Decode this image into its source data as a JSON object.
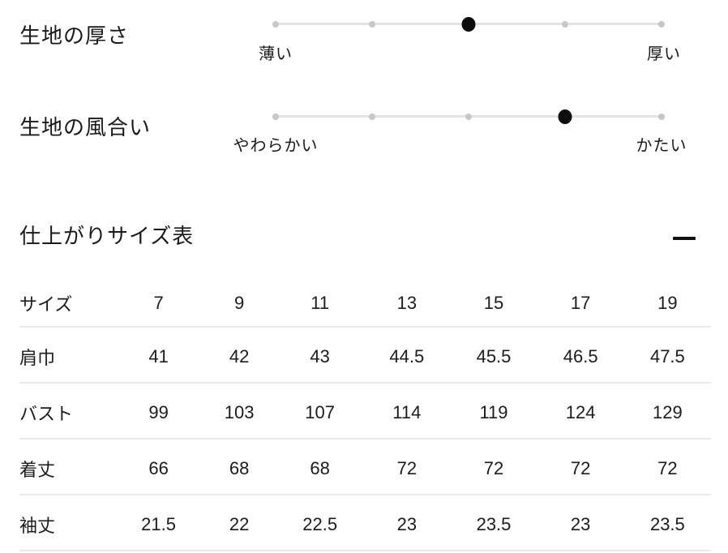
{
  "scales": {
    "items": [
      {
        "label": "生地の厚さ",
        "left_label": "薄い",
        "right_label": "厚い",
        "steps": 5,
        "selected": 3
      },
      {
        "label": "生地の風合い",
        "left_label": "やわらかい",
        "right_label": "かたい",
        "steps": 5,
        "selected": 4
      }
    ]
  },
  "size_section": {
    "title": "仕上がりサイズ表",
    "collapse_icon": "minus",
    "table": {
      "header": [
        "サイズ",
        "7",
        "9",
        "11",
        "13",
        "15",
        "17",
        "19"
      ],
      "rows": [
        {
          "label": "肩巾",
          "values": [
            "41",
            "42",
            "43",
            "44.5",
            "45.5",
            "46.5",
            "47.5"
          ]
        },
        {
          "label": "バスト",
          "values": [
            "99",
            "103",
            "107",
            "114",
            "119",
            "124",
            "129"
          ]
        },
        {
          "label": "着丈",
          "values": [
            "66",
            "68",
            "68",
            "72",
            "72",
            "72",
            "72"
          ]
        },
        {
          "label": "袖丈",
          "values": [
            "21.5",
            "22",
            "22.5",
            "23",
            "23.5",
            "23",
            "23.5"
          ]
        }
      ]
    }
  },
  "colors": {
    "text": "#1a1a1a",
    "active_dot": "#0d0d0d",
    "inactive_dot": "#c7c7c7",
    "track": "#e3e3e3",
    "divider": "#eaeaea",
    "background": "#ffffff"
  }
}
